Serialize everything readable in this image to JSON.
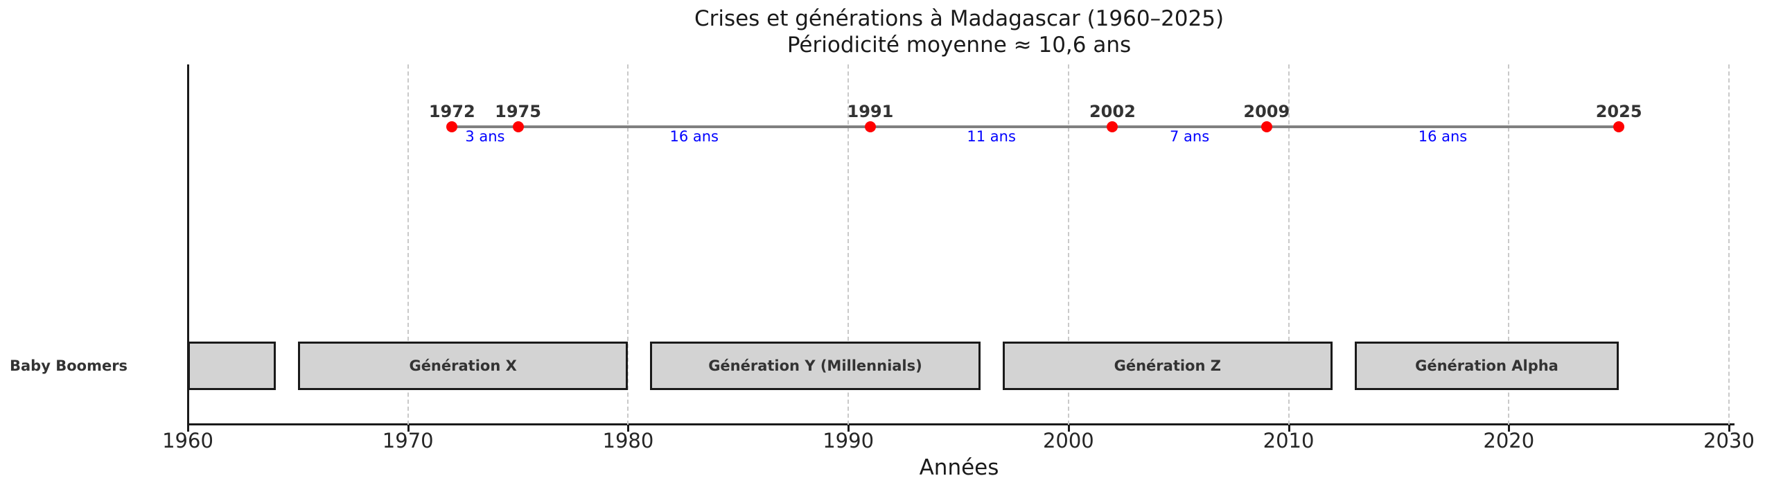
{
  "chart_data": {
    "type": "timeline",
    "title": "Crises et générations à Madagascar (1960–2025)",
    "subtitle": "Périodicité moyenne ≈ 10,6 ans",
    "xlabel": "Années",
    "xlim": [
      1960,
      2030
    ],
    "x_ticks": [
      1960,
      1970,
      1980,
      1990,
      2000,
      2010,
      2020,
      2030
    ],
    "grid": "vertical-dashed",
    "crises": [
      1972,
      1975,
      1991,
      2002,
      2009,
      2025
    ],
    "intervals": [
      {
        "from": 1972,
        "to": 1975,
        "label": "3 ans"
      },
      {
        "from": 1975,
        "to": 1991,
        "label": "16 ans"
      },
      {
        "from": 1991,
        "to": 2002,
        "label": "11 ans"
      },
      {
        "from": 2002,
        "to": 2009,
        "label": "7 ans"
      },
      {
        "from": 2009,
        "to": 2025,
        "label": "16 ans"
      }
    ],
    "generations": [
      {
        "label": "Baby Boomers",
        "start": 1960,
        "end": 1964,
        "label_outside": true
      },
      {
        "label": "Génération X",
        "start": 1965,
        "end": 1980,
        "label_outside": false
      },
      {
        "label": "Génération Y (Millennials)",
        "start": 1981,
        "end": 1996,
        "label_outside": false
      },
      {
        "label": "Génération Z",
        "start": 1997,
        "end": 2012,
        "label_outside": false
      },
      {
        "label": "Génération Alpha",
        "start": 2013,
        "end": 2025,
        "label_outside": false
      }
    ],
    "colors": {
      "crisis_dot": "#ff0000",
      "interval_text": "#0000ff",
      "timeline_line": "#808080",
      "generation_fill": "#d3d3d3",
      "generation_edge": "#1a1a1a",
      "grid": "#c9c9c9",
      "axis": "#1a1a1a",
      "text": "#333333"
    }
  }
}
